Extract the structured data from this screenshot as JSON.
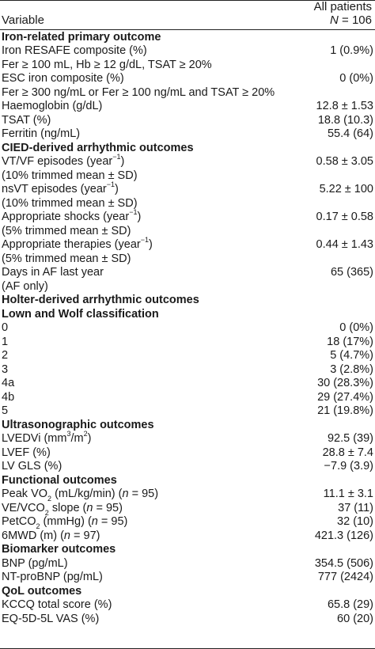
{
  "header": {
    "variable_label": "Variable",
    "group_label": "All patients",
    "n_prefix": "N",
    "n_value": " = 106"
  },
  "rows": [
    {
      "t": "section",
      "label": "Iron-related primary outcome",
      "value": ""
    },
    {
      "t": "row",
      "label": "Iron RESAFE composite (%)",
      "value": "1 (0.9%)"
    },
    {
      "t": "row",
      "label": "Fer ≥ 100 mL, Hb ≥ 12 g/dL, TSAT ≥ 20%",
      "value": ""
    },
    {
      "t": "row",
      "label": "ESC iron composite (%)",
      "value": "0 (0%)"
    },
    {
      "t": "row",
      "label": "Fer ≥ 300 ng/mL or Fer ≥ 100 ng/mL and TSAT ≥ 20%",
      "value": ""
    },
    {
      "t": "row",
      "label": "Haemoglobin (g/dL)",
      "value": "12.8 ± 1.53"
    },
    {
      "t": "row",
      "label": "TSAT (%)",
      "value": "18.8 (10.3)"
    },
    {
      "t": "row",
      "label": "Ferritin (ng/mL)",
      "value": "55.4 (64)"
    },
    {
      "t": "section",
      "label": "CIED-derived arrhythmic outcomes",
      "value": ""
    },
    {
      "t": "row",
      "label": "VT/VF episodes (year",
      "sup": "−1",
      "tail": ")",
      "value": "0.58 ± 3.05"
    },
    {
      "t": "row",
      "label": "(10% trimmed mean ± SD)",
      "value": ""
    },
    {
      "t": "row",
      "label": "nsVT episodes (year",
      "sup": "−1",
      "tail": ")",
      "value": "5.22 ± 100"
    },
    {
      "t": "row",
      "label": "(10% trimmed mean ± SD)",
      "value": ""
    },
    {
      "t": "row",
      "label": "Appropriate shocks (year",
      "sup": "−1",
      "tail": ")",
      "value": "0.17 ± 0.58"
    },
    {
      "t": "row",
      "label": "(5% trimmed mean ± SD)",
      "value": ""
    },
    {
      "t": "row",
      "label": "Appropriate therapies (year",
      "sup": "−1",
      "tail": ")",
      "value": "0.44 ± 1.43"
    },
    {
      "t": "row",
      "label": "(5% trimmed mean ± SD)",
      "value": ""
    },
    {
      "t": "row",
      "label": "Days in AF last year",
      "value": "65 (365)"
    },
    {
      "t": "row",
      "label": "(AF only)",
      "value": ""
    },
    {
      "t": "section",
      "label": "Holter-derived arrhythmic outcomes",
      "value": ""
    },
    {
      "t": "section",
      "label": "Lown and Wolf classification",
      "value": ""
    },
    {
      "t": "row",
      "label": "0",
      "value": "0 (0%)"
    },
    {
      "t": "row",
      "label": "1",
      "value": "18 (17%)"
    },
    {
      "t": "row",
      "label": "2",
      "value": "5 (4.7%)"
    },
    {
      "t": "row",
      "label": "3",
      "value": "3 (2.8%)"
    },
    {
      "t": "row",
      "label": "4a",
      "value": "30 (28.3%)"
    },
    {
      "t": "row",
      "label": "4b",
      "value": "29 (27.4%)"
    },
    {
      "t": "row",
      "label": "5",
      "value": "21 (19.8%)"
    },
    {
      "t": "section",
      "label": "Ultrasonographic outcomes",
      "value": ""
    },
    {
      "t": "row",
      "label": "LVEDVi (mm",
      "sup": "3",
      "mid": "/m",
      "sup2": "2",
      "tail": ")",
      "value": "92.5 (39)"
    },
    {
      "t": "row",
      "label": "LVEF (%)",
      "value": "28.8 ± 7.4"
    },
    {
      "t": "row",
      "label": "LV GLS (%)",
      "value": "−7.9 (3.9)"
    },
    {
      "t": "section",
      "label": "Functional outcomes",
      "value": ""
    },
    {
      "t": "row",
      "label": "Peak VO",
      "sub": "2",
      "mid": " (mL/kg/min) (",
      "ital": "n",
      "tail": " = 95)",
      "value": "11.1 ± 3.1"
    },
    {
      "t": "row",
      "label": "VE/VCO",
      "sub": "2",
      "mid": " slope (",
      "ital": "n",
      "tail": " = 95)",
      "value": "37 (11)"
    },
    {
      "t": "row",
      "label": "PetCO",
      "sub": "2",
      "mid": " (mmHg) (",
      "ital": "n",
      "tail": " = 95)",
      "value": "32 (10)"
    },
    {
      "t": "row",
      "label": "6MWD (m) (",
      "ital": "n",
      "tail": " = 97)",
      "value": "421.3 (126)"
    },
    {
      "t": "section",
      "label": "Biomarker outcomes",
      "value": ""
    },
    {
      "t": "row",
      "label": "BNP (pg/mL)",
      "value": "354.5 (506)"
    },
    {
      "t": "row",
      "label": "NT-proBNP (pg/mL)",
      "value": "777 (2424)"
    },
    {
      "t": "section",
      "label": "QoL outcomes",
      "value": ""
    },
    {
      "t": "row",
      "label": "KCCQ total score (%)",
      "value": "65.8 (29)"
    },
    {
      "t": "row",
      "label": "EQ-5D-5L VAS (%)",
      "value": "60 (20)"
    }
  ]
}
